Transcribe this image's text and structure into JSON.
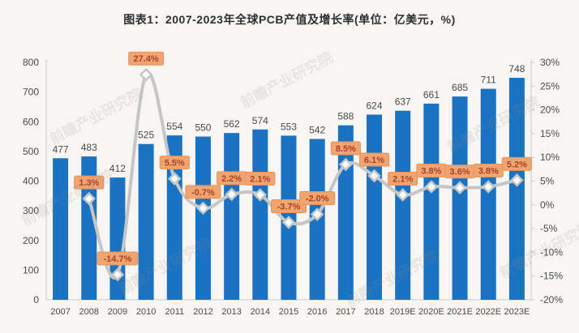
{
  "title": "图表1：2007-2023年全球PCB产值及增长率(单位：亿美元，%)",
  "watermark_text": "前瞻产业研究院",
  "colors": {
    "background": "#f7f6f4",
    "title_text": "#2f2f2f",
    "bar": "#1a72c2",
    "line": "#c6c6c6",
    "marker_fill": "#ffffff",
    "marker_stroke": "#c6c6c6",
    "growth_label_bg": "#f0a571",
    "growth_label_border": "#e69459",
    "growth_label_text": "#a8402a",
    "axis_text": "#4a4a4a",
    "axis_line": "#c9c9c9",
    "value_label_text": "#4a4a4a"
  },
  "chart_data": {
    "type": "bar",
    "subtype": "bar+line-combo",
    "title": "图表1：2007-2023年全球PCB产值及增长率(单位：亿美元，%)",
    "categories": [
      "2007",
      "2008",
      "2009",
      "2010",
      "2011",
      "2012",
      "2013",
      "2014",
      "2015",
      "2016",
      "2017",
      "2018",
      "2019E",
      "2020E",
      "2021E",
      "2022E",
      "2023E"
    ],
    "series": [
      {
        "name": "全球PCB产值(亿美元)",
        "type": "bar",
        "axis": "left",
        "values": [
          477,
          483,
          412,
          525,
          554,
          550,
          562,
          574,
          553,
          542,
          588,
          624,
          637,
          661,
          685,
          711,
          748
        ]
      },
      {
        "name": "增长率(%)",
        "type": "line",
        "axis": "right",
        "values": [
          null,
          1.3,
          -14.7,
          27.4,
          5.5,
          -0.7,
          2.2,
          2.1,
          -3.7,
          -2.0,
          8.5,
          6.1,
          2.1,
          3.8,
          3.6,
          3.8,
          5.2
        ]
      }
    ],
    "left_axis": {
      "min": 0,
      "max": 800,
      "step": 100,
      "ticks": [
        "0",
        "100",
        "200",
        "300",
        "400",
        "500",
        "600",
        "700",
        "800"
      ]
    },
    "right_axis": {
      "min": -20,
      "max": 30,
      "step": 5,
      "suffix": "%",
      "ticks": [
        "-20%",
        "-15%",
        "-10%",
        "-5%",
        "0%",
        "5%",
        "10%",
        "15%",
        "20%",
        "25%",
        "30%"
      ]
    },
    "grid": false,
    "legend": "none",
    "growth_labels": [
      "1.3%",
      "-14.7%",
      "27.4%",
      "5.5%",
      "-0.7%",
      "2.2%",
      "2.1%",
      "-3.7%",
      "-2.0%",
      "8.5%",
      "6.1%",
      "2.1%",
      "3.8%",
      "3.6%",
      "3.8%",
      "5.2%"
    ]
  }
}
